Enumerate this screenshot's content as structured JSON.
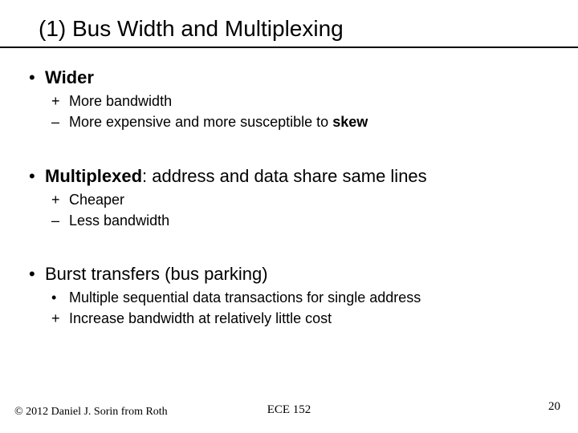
{
  "colors": {
    "text": "#000000",
    "background": "#ffffff",
    "rule": "#000000"
  },
  "typography": {
    "title_fontsize": 28,
    "bullet1_fontsize": 22,
    "bullet2_fontsize": 18,
    "footer_fontsize": 14,
    "body_font": "Verdana",
    "footer_font": "Times New Roman"
  },
  "title": "(1) Bus Width and Multiplexing",
  "sections": [
    {
      "head_pre": "",
      "head_bold": "Wider",
      "head_post": "",
      "subs": [
        {
          "marker": "+",
          "pre": "More bandwidth",
          "bold": "",
          "post": ""
        },
        {
          "marker": "–",
          "pre": "More expensive and more susceptible to ",
          "bold": "skew",
          "post": ""
        }
      ]
    },
    {
      "head_pre": "",
      "head_bold": "Multiplexed",
      "head_post": ": address and data share same lines",
      "subs": [
        {
          "marker": "+",
          "pre": "Cheaper",
          "bold": "",
          "post": ""
        },
        {
          "marker": "–",
          "pre": "Less bandwidth",
          "bold": "",
          "post": ""
        }
      ]
    },
    {
      "head_pre": "Burst transfers (bus parking)",
      "head_bold": "",
      "head_post": "",
      "subs": [
        {
          "marker": "•",
          "pre": "Multiple sequential data transactions for single address",
          "bold": "",
          "post": ""
        },
        {
          "marker": "+",
          "pre": "Increase bandwidth at relatively little cost",
          "bold": "",
          "post": ""
        }
      ]
    }
  ],
  "footer": {
    "copyright": "© 2012 Daniel J. Sorin from Roth",
    "course": "ECE 152",
    "page": "20"
  }
}
